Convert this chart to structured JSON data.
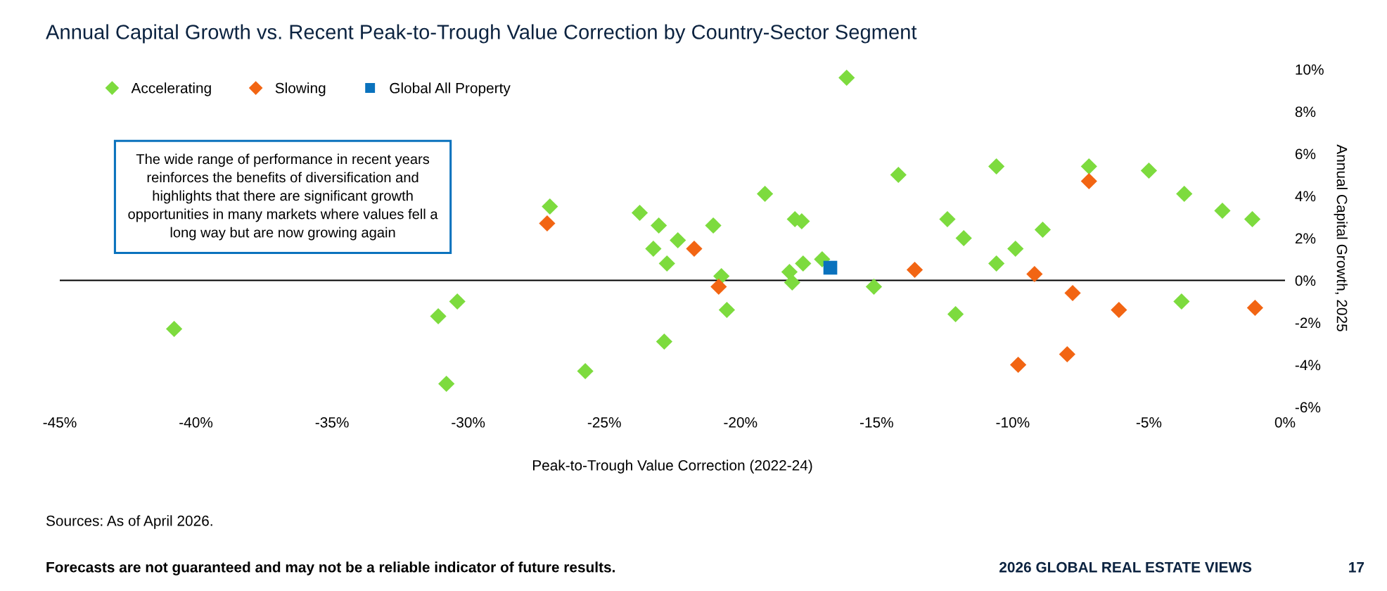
{
  "chart_data": {
    "type": "scatter",
    "title": "Annual Capital Growth vs. Recent Peak-to-Trough Value Correction by Country-Sector Segment",
    "xlabel": "Peak-to-Trough Value Correction (2022-24)",
    "ylabel": "Annual Capital Growth, 2025",
    "xlim": [
      -45,
      0
    ],
    "xticks": [
      {
        "value": -45,
        "label": "-45%"
      },
      {
        "value": -40,
        "label": "-40%"
      },
      {
        "value": -35,
        "label": "-35%"
      },
      {
        "value": -30,
        "label": "-30%"
      },
      {
        "value": -25,
        "label": "-25%"
      },
      {
        "value": -20,
        "label": "-20%"
      },
      {
        "value": -15,
        "label": "-15%"
      },
      {
        "value": -10,
        "label": "-10%"
      },
      {
        "value": -5,
        "label": "-5%"
      },
      {
        "value": 0,
        "label": "0%"
      }
    ],
    "ylim": [
      -6,
      10
    ],
    "yticks": [
      {
        "value": -6,
        "label": "-6%"
      },
      {
        "value": -4,
        "label": "-4%"
      },
      {
        "value": -2,
        "label": "-2%"
      },
      {
        "value": 0,
        "label": "0%"
      },
      {
        "value": 2,
        "label": "2%"
      },
      {
        "value": 4,
        "label": "4%"
      },
      {
        "value": 6,
        "label": "6%"
      },
      {
        "value": 8,
        "label": "8%"
      },
      {
        "value": 10,
        "label": "10%"
      }
    ],
    "grid": false,
    "legend": "top left",
    "ref_lines": [
      {
        "axis": "y",
        "value": 0,
        "color": "#000000"
      }
    ],
    "series": [
      {
        "name": "Accelerating",
        "color": "#7ddb3e",
        "marker": "diamond",
        "x": [
          -40.8,
          -31.1,
          -30.4,
          -30.8,
          -16.1,
          -27.0,
          -23.7,
          -23.0,
          -22.3,
          -23.2,
          -22.7,
          -21.0,
          -20.7,
          -20.5,
          -22.8,
          -25.7,
          -19.1,
          -18.0,
          -17.75,
          -17.7,
          -18.2,
          -18.1,
          -17.0,
          -15.1,
          -14.2,
          -12.4,
          -11.8,
          -12.1,
          -10.6,
          -10.6,
          -9.9,
          -8.9,
          -7.2,
          -5.0,
          -3.8,
          -3.7,
          -2.3,
          -1.2
        ],
        "values": [
          -2.3,
          -1.7,
          -1.0,
          -4.9,
          9.6,
          3.5,
          3.2,
          2.6,
          1.9,
          1.5,
          0.8,
          2.6,
          0.2,
          -1.4,
          -2.9,
          -4.3,
          4.1,
          2.9,
          2.8,
          0.8,
          0.4,
          -0.1,
          1.0,
          -0.3,
          5.0,
          2.9,
          2.0,
          -1.6,
          5.4,
          0.8,
          1.5,
          2.4,
          5.4,
          5.2,
          -1.0,
          4.1,
          3.3,
          2.9
        ]
      },
      {
        "name": "Slowing",
        "color": "#f26513",
        "marker": "diamond",
        "x": [
          -27.1,
          -21.7,
          -20.8,
          -13.6,
          -9.2,
          -9.8,
          -8.0,
          -7.8,
          -7.2,
          -6.1,
          -1.1
        ],
        "values": [
          2.7,
          1.5,
          -0.3,
          0.5,
          0.3,
          -4.0,
          -3.5,
          -0.6,
          4.7,
          -1.4,
          -1.3
        ]
      },
      {
        "name": "Global All Property",
        "color": "#0a72bd",
        "marker": "square",
        "x": [
          -16.7
        ],
        "values": [
          0.6
        ]
      }
    ],
    "annotations": [
      "The wide range of performance in recent years\nreinforces the benefits of diversification and\nhighlights that there are significant growth\nopportunities in many markets where values fell a\nlong way but are now growing again",
      "Sources: As of April 2026.",
      "Forecasts are not guaranteed and may not be a reliable indicator of future results.",
      "2026 GLOBAL REAL ESTATE VIEWS",
      "17"
    ]
  }
}
